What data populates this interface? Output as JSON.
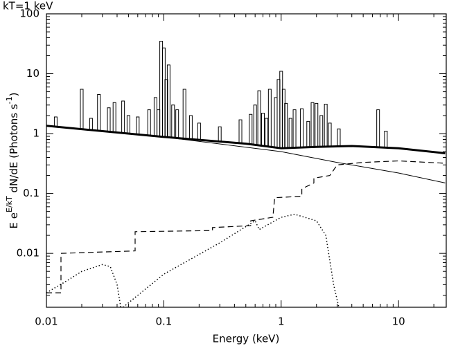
{
  "chart_data": {
    "type": "line",
    "title": "kT=1 keV",
    "xlabel": "Energy (keV)",
    "ylabel": [
      "E e",
      "E/kT",
      " dN/dE (Photons s",
      "-1",
      ")"
    ],
    "xscale": "log",
    "yscale": "log",
    "xlim": [
      0.01,
      25.5
    ],
    "ylim": [
      0.00126,
      100
    ],
    "xticks": [
      0.01,
      0.1,
      1,
      10
    ],
    "yticks": [
      0.01,
      0.1,
      1,
      10,
      100
    ],
    "color": "#000000",
    "series": [
      {
        "style": "thin",
        "x": [
          0.01,
          0.1,
          1,
          3,
          10,
          25
        ],
        "values": [
          1.35,
          0.88,
          0.5,
          0.33,
          0.22,
          0.15
        ]
      },
      {
        "style": "thick",
        "x": [
          0.01,
          0.1,
          0.5,
          1,
          2,
          4,
          10,
          25
        ],
        "values": [
          1.35,
          0.88,
          0.68,
          0.57,
          0.6,
          0.62,
          0.57,
          0.47
        ]
      },
      {
        "style": "dashed",
        "x": [
          0.01,
          0.0133,
          0.0133,
          0.057,
          0.057,
          0.26,
          0.26,
          0.55,
          0.55,
          0.85,
          0.88,
          1.5,
          1.5,
          1.9,
          1.9,
          2.6,
          3.0,
          5,
          10,
          25
        ],
        "values": [
          0.0022,
          0.0022,
          0.01,
          0.011,
          0.023,
          0.024,
          0.027,
          0.029,
          0.035,
          0.04,
          0.085,
          0.09,
          0.12,
          0.15,
          0.18,
          0.2,
          0.3,
          0.33,
          0.35,
          0.32
        ]
      },
      {
        "style": "dotted",
        "x": [
          0.01,
          0.015,
          0.02,
          0.03,
          0.035,
          0.04,
          0.043,
          0.044,
          0.045,
          0.1,
          0.3,
          0.6,
          0.65,
          1,
          1.3,
          2,
          2.4,
          2.8,
          3.1
        ],
        "values": [
          0.0022,
          0.0035,
          0.005,
          0.0065,
          0.006,
          0.003,
          0.00126,
          null,
          0.00126,
          0.0045,
          0.015,
          0.035,
          0.025,
          0.04,
          0.045,
          0.035,
          0.02,
          0.003,
          0.00126
        ]
      },
      {
        "style": "spike",
        "x": [
          0.012,
          0.02,
          0.024,
          0.028,
          0.034,
          0.038,
          0.045,
          0.05,
          0.06,
          0.075,
          0.085,
          0.09,
          0.095,
          0.1,
          0.105,
          0.11,
          0.12,
          0.13,
          0.15,
          0.17,
          0.2,
          0.3,
          0.45,
          0.55,
          0.6,
          0.65,
          0.7,
          0.75,
          0.8,
          0.9,
          0.95,
          1.0,
          1.05,
          1.1,
          1.2,
          1.3,
          1.5,
          1.7,
          1.85,
          2.0,
          2.2,
          2.4,
          2.6,
          3.1,
          6.7,
          7.8
        ],
        "values": [
          1.9,
          5.5,
          1.8,
          4.5,
          2.7,
          3.3,
          3.5,
          2,
          1.9,
          2.5,
          4,
          2.5,
          35,
          27,
          8,
          14,
          3,
          2.5,
          5.5,
          2,
          1.5,
          1.3,
          1.7,
          2.1,
          3,
          5.2,
          2.2,
          1.8,
          5.5,
          4,
          8,
          11,
          5.5,
          3.2,
          1.8,
          2.5,
          2.6,
          1.6,
          3.3,
          3.2,
          2,
          3.1,
          1.5,
          1.2,
          2.5,
          1.1
        ]
      }
    ]
  }
}
